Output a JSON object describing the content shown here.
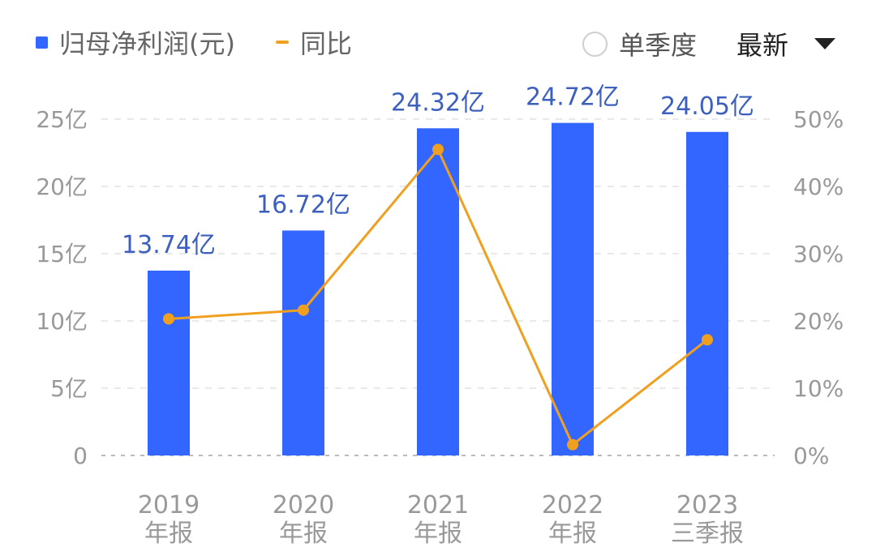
{
  "legend": {
    "bar_label": "归母净利润(元)",
    "line_label": "同比"
  },
  "controls": {
    "single_quarter_label": "单季度",
    "latest_label": "最新"
  },
  "colors": {
    "bar": "#3366ff",
    "line": "#f0a020",
    "value_label": "#3d5fbd",
    "axis_text": "#999999",
    "grid": "#e2e2e2"
  },
  "chart_data": {
    "type": "bar",
    "categories": [
      [
        "2019",
        "年报"
      ],
      [
        "2020",
        "年报"
      ],
      [
        "2021",
        "年报"
      ],
      [
        "2022",
        "年报"
      ],
      [
        "2023",
        "三季报"
      ]
    ],
    "series": [
      {
        "name": "归母净利润(元)",
        "type": "bar",
        "axis": "left",
        "values": [
          13.74,
          16.72,
          24.32,
          24.72,
          24.05
        ],
        "labels": [
          "13.74亿",
          "16.72亿",
          "24.32亿",
          "24.72亿",
          "24.05亿"
        ]
      },
      {
        "name": "同比",
        "type": "line",
        "axis": "right",
        "values": [
          20.3,
          21.6,
          45.5,
          1.6,
          17.2
        ]
      }
    ],
    "left_axis": {
      "min": 0,
      "max": 25,
      "ticks": [
        0,
        5,
        10,
        15,
        20,
        25
      ],
      "tick_labels": [
        "0",
        "5亿",
        "10亿",
        "15亿",
        "20亿",
        "25亿"
      ]
    },
    "right_axis": {
      "min": 0,
      "max": 50,
      "ticks": [
        0,
        10,
        20,
        30,
        40,
        50
      ],
      "tick_labels": [
        "0%",
        "10%",
        "20%",
        "30%",
        "40%",
        "50%"
      ]
    },
    "grid": true,
    "legend": "top-left"
  }
}
